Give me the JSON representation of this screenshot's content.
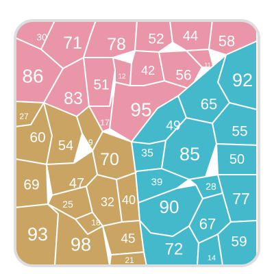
{
  "colors": {
    "pink": "#E896A8",
    "gold": "#C9A463",
    "teal": "#45B9CC",
    "border": "#DDDDDD",
    "line": "#FFFFFF"
  },
  "groups": [
    {
      "color": "pink",
      "cells": [
        {
          "label": "30",
          "value": 30
        },
        {
          "label": "71",
          "value": 71
        },
        {
          "label": "78",
          "value": 78
        },
        {
          "label": "52",
          "value": 52
        },
        {
          "label": "44",
          "value": 44
        },
        {
          "label": "58",
          "value": 58
        },
        {
          "label": "86",
          "value": 86
        },
        {
          "label": "83",
          "value": 83
        },
        {
          "label": "51",
          "value": 51
        },
        {
          "label": "12",
          "value": 12
        },
        {
          "label": "42",
          "value": 42
        },
        {
          "label": "56",
          "value": 56
        },
        {
          "label": "11",
          "value": 11
        },
        {
          "label": "95",
          "value": 95
        },
        {
          "label": "17",
          "value": 17
        }
      ]
    },
    {
      "color": "gold",
      "cells": [
        {
          "label": "27",
          "value": 27
        },
        {
          "label": "60",
          "value": 60
        },
        {
          "label": "54",
          "value": 54
        },
        {
          "label": "19",
          "value": 19
        },
        {
          "label": "70",
          "value": 70
        },
        {
          "label": "69",
          "value": 69
        },
        {
          "label": "47",
          "value": 47
        },
        {
          "label": "25",
          "value": 25
        },
        {
          "label": "32",
          "value": 32
        },
        {
          "label": "40",
          "value": 40
        },
        {
          "label": "18",
          "value": 18
        },
        {
          "label": "93",
          "value": 93
        },
        {
          "label": "98",
          "value": 98
        },
        {
          "label": "45",
          "value": 45
        },
        {
          "label": "21",
          "value": 21
        }
      ]
    },
    {
      "color": "teal",
      "cells": [
        {
          "label": "92",
          "value": 92
        },
        {
          "label": "65",
          "value": 65
        },
        {
          "label": "49",
          "value": 49
        },
        {
          "label": "55",
          "value": 55
        },
        {
          "label": "35",
          "value": 35
        },
        {
          "label": "85",
          "value": 85
        },
        {
          "label": "50",
          "value": 50
        },
        {
          "label": "39",
          "value": 39
        },
        {
          "label": "28",
          "value": 28
        },
        {
          "label": "77",
          "value": 77
        },
        {
          "label": "90",
          "value": 90
        },
        {
          "label": "67",
          "value": 67
        },
        {
          "label": "72",
          "value": 72
        },
        {
          "label": "59",
          "value": 59
        },
        {
          "label": "14",
          "value": 14
        }
      ]
    }
  ]
}
